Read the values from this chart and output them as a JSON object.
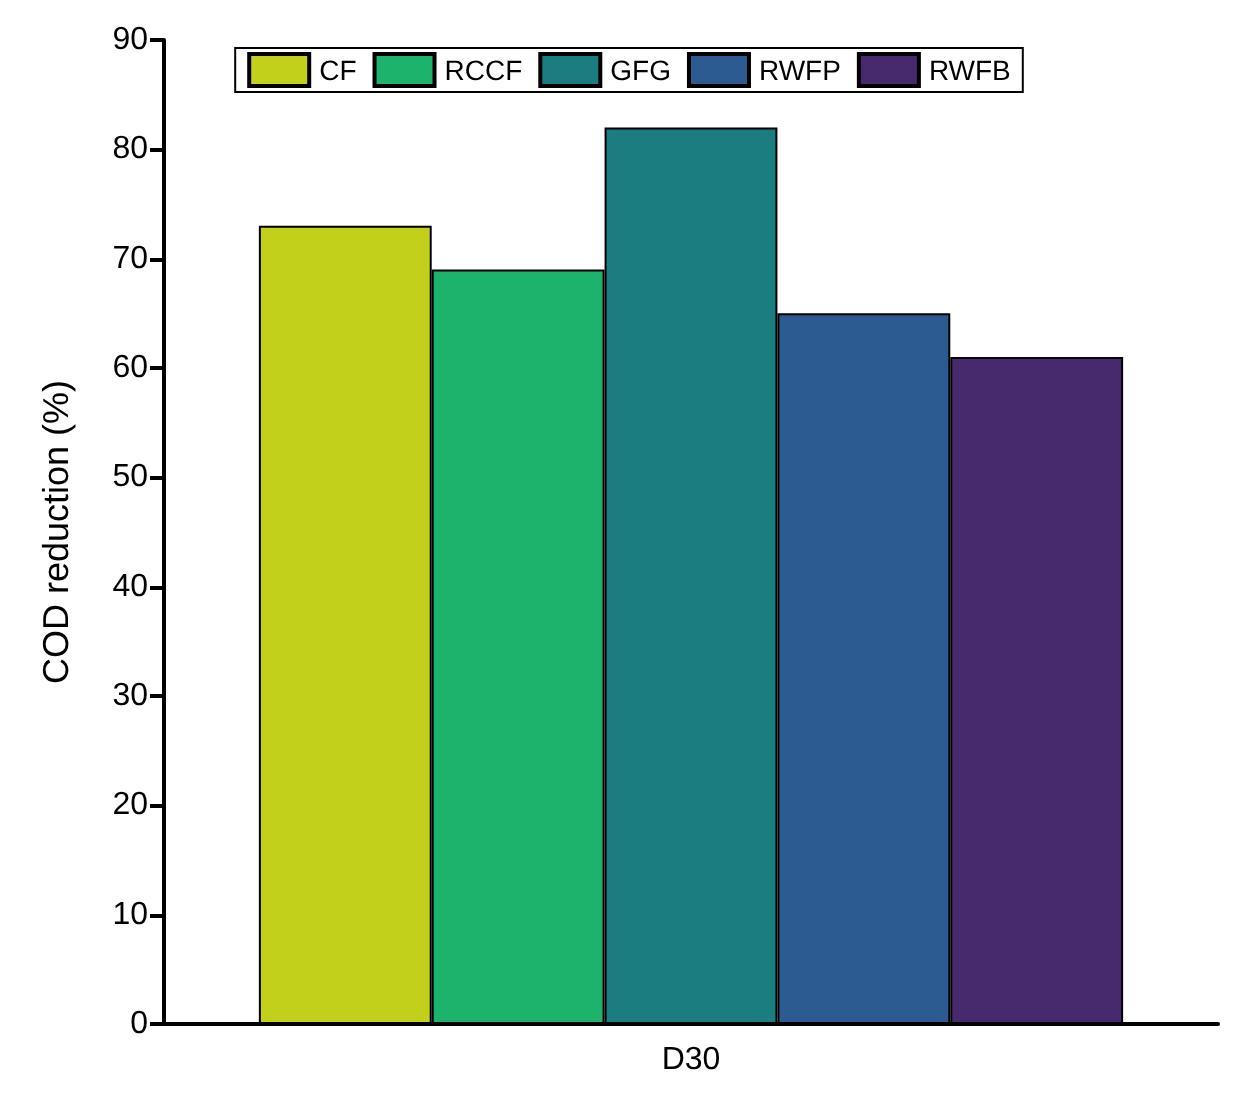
{
  "chart_data": {
    "type": "bar",
    "ylabel": "COD reduction (%)",
    "categories": [
      "D30"
    ],
    "series": [
      {
        "name": "CF",
        "color": "#c2d01c",
        "values": [
          73
        ]
      },
      {
        "name": "RCCF",
        "color": "#1eb36c",
        "values": [
          69
        ]
      },
      {
        "name": "GFG",
        "color": "#1a7d80",
        "values": [
          82
        ]
      },
      {
        "name": "RWFP",
        "color": "#2b5b91",
        "values": [
          65
        ]
      },
      {
        "name": "RWFB",
        "color": "#47296e",
        "values": [
          61
        ]
      }
    ],
    "ylim": [
      0,
      90
    ],
    "yticks": [
      0,
      10,
      20,
      30,
      40,
      50,
      60,
      70,
      80,
      90
    ],
    "grid": false,
    "legend": "top"
  }
}
